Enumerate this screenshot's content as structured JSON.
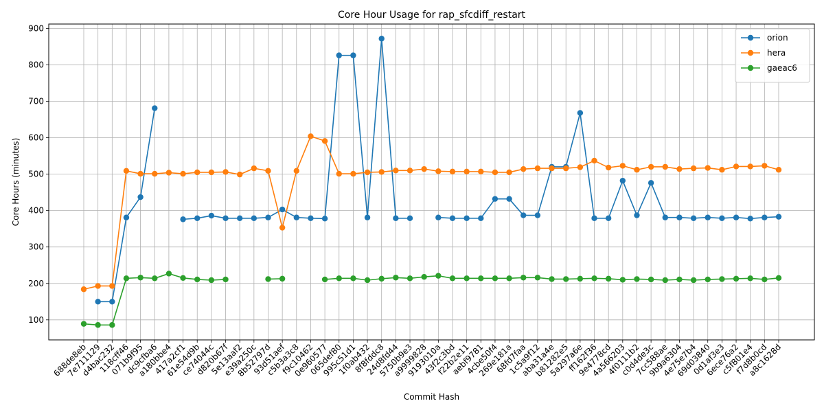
{
  "chart_data": {
    "type": "line",
    "title": "Core Hour Usage for rap_sfcdiff_restart",
    "xlabel": "Commit Hash",
    "ylabel": "Core Hours (minutes)",
    "ylim": [
      45,
      912
    ],
    "yticks": [
      100,
      200,
      300,
      400,
      500,
      600,
      700,
      800,
      900
    ],
    "grid": true,
    "legend_position": "top-right",
    "categories": [
      "688de8eb",
      "7e711129",
      "d4bac232",
      "118cff46",
      "071b9f95",
      "dc9cfba6",
      "a180bbe4",
      "417a2cf1",
      "61e54d9b",
      "ce74044c",
      "d820b67f",
      "5e13aaf2",
      "e39a250c",
      "8b52797d",
      "93d51aef",
      "c5b3a3c8",
      "f9c10462",
      "0e960577",
      "065def80",
      "995c51d1",
      "1f0ab432",
      "8f8fddc8",
      "24d8fd44",
      "5750b9e3",
      "a9999828",
      "9193010a",
      "43f2c3bd",
      "f22b2e11",
      "aebf9781",
      "4cbe50f4",
      "269e181a",
      "68fd7faa",
      "1c5a9f12",
      "aba31a4e",
      "b81282e5",
      "5a297a6e",
      "ff162f36",
      "9e4778cd",
      "4a566203",
      "4f0111b2",
      "c0d4de3c",
      "7cc588ae",
      "9b9a6304",
      "4e75e7b4",
      "69d03840",
      "0d1af3e3",
      "6ece76a2",
      "c5f801e4",
      "f7d8b0cd",
      "a8c1628d"
    ],
    "series": [
      {
        "name": "orion",
        "color": "#1f77b4",
        "values": [
          null,
          150,
          150,
          381,
          437,
          681,
          null,
          376,
          379,
          386,
          379,
          379,
          379,
          381,
          403,
          381,
          379,
          378,
          826,
          826,
          381,
          872,
          379,
          379,
          null,
          381,
          379,
          379,
          379,
          432,
          432,
          387,
          387,
          520,
          520,
          668,
          379,
          379,
          482,
          387,
          476,
          381,
          381,
          379,
          381,
          379,
          381,
          378,
          381,
          383
        ]
      },
      {
        "name": "hera",
        "color": "#ff7f0e",
        "values": [
          184,
          193,
          193,
          509,
          501,
          501,
          504,
          501,
          505,
          505,
          506,
          499,
          516,
          509,
          353,
          509,
          604,
          591,
          501,
          501,
          505,
          506,
          510,
          510,
          514,
          508,
          507,
          507,
          507,
          505,
          505,
          514,
          516,
          516,
          516,
          519,
          537,
          518,
          523,
          512,
          520,
          520,
          514,
          516,
          517,
          512,
          521,
          521,
          523,
          512
        ]
      },
      {
        "name": "gaeac6",
        "color": "#2ca02c",
        "values": [
          89,
          86,
          86,
          214,
          216,
          214,
          227,
          215,
          211,
          209,
          211,
          null,
          null,
          212,
          213,
          null,
          null,
          211,
          214,
          214,
          209,
          213,
          216,
          214,
          218,
          221,
          214,
          214,
          214,
          214,
          214,
          216,
          216,
          212,
          212,
          213,
          214,
          213,
          210,
          212,
          211,
          209,
          211,
          209,
          211,
          212,
          213,
          214,
          211,
          215
        ]
      }
    ]
  }
}
